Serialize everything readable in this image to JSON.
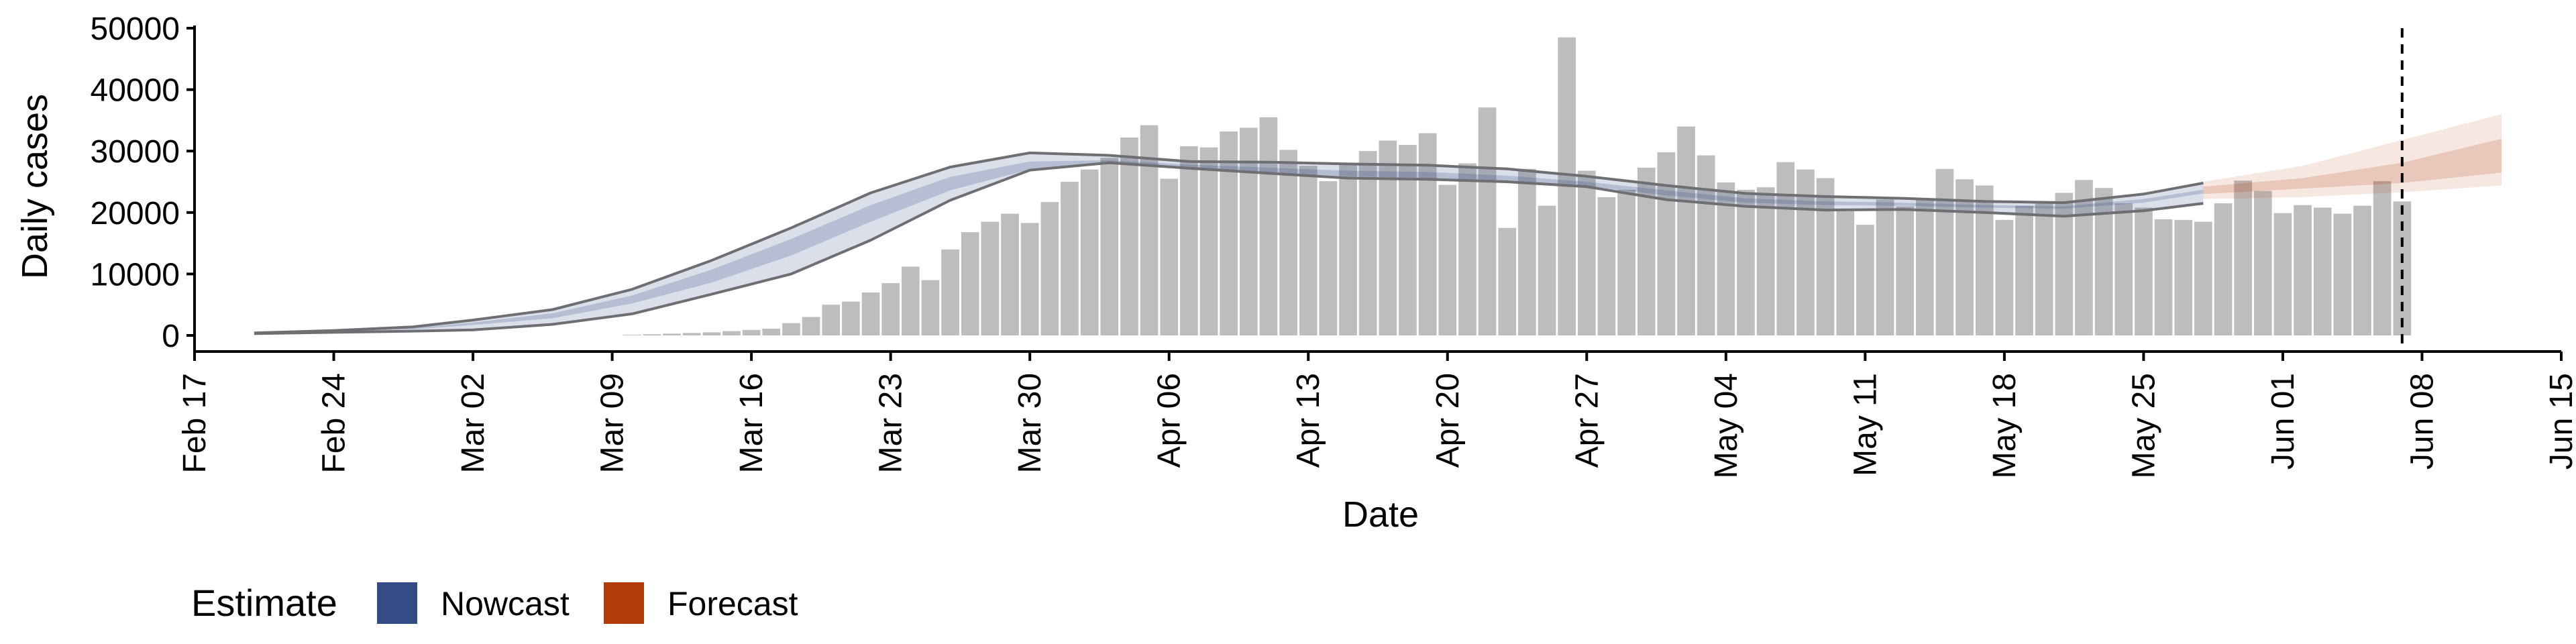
{
  "chart_data": {
    "type": "bar",
    "xlabel": "Date",
    "ylabel": "Daily cases",
    "ylim": [
      0,
      50000
    ],
    "yticks": [
      0,
      10000,
      20000,
      30000,
      40000,
      50000
    ],
    "xlim": [
      "2020-02-17",
      "2020-06-15"
    ],
    "xticks": [
      {
        "date": "2020-02-17",
        "label": "Feb 17"
      },
      {
        "date": "2020-02-24",
        "label": "Feb 24"
      },
      {
        "date": "2020-03-02",
        "label": "Mar 02"
      },
      {
        "date": "2020-03-09",
        "label": "Mar 09"
      },
      {
        "date": "2020-03-16",
        "label": "Mar 16"
      },
      {
        "date": "2020-03-23",
        "label": "Mar 23"
      },
      {
        "date": "2020-03-30",
        "label": "Mar 30"
      },
      {
        "date": "2020-04-06",
        "label": "Apr 06"
      },
      {
        "date": "2020-04-13",
        "label": "Apr 13"
      },
      {
        "date": "2020-04-20",
        "label": "Apr 20"
      },
      {
        "date": "2020-04-27",
        "label": "Apr 27"
      },
      {
        "date": "2020-05-04",
        "label": "May 04"
      },
      {
        "date": "2020-05-11",
        "label": "May 11"
      },
      {
        "date": "2020-05-18",
        "label": "May 18"
      },
      {
        "date": "2020-05-25",
        "label": "May 25"
      },
      {
        "date": "2020-06-01",
        "label": "Jun 01"
      },
      {
        "date": "2020-06-08",
        "label": "Jun 08"
      },
      {
        "date": "2020-06-15",
        "label": "Jun 15"
      }
    ],
    "grid": false,
    "legend": {
      "title": "Estimate",
      "position": "bottom-left",
      "items": [
        {
          "label": "Nowcast",
          "color": "#344b85"
        },
        {
          "label": "Forecast",
          "color": "#b33a0a"
        }
      ]
    },
    "reported_cases": {
      "start_date": "2020-03-10",
      "values": [
        100,
        200,
        300,
        400,
        500,
        700,
        900,
        1100,
        2000,
        3000,
        5000,
        5500,
        7000,
        8500,
        11200,
        9000,
        14000,
        16800,
        18500,
        19800,
        18300,
        21700,
        25000,
        27000,
        28900,
        32200,
        34200,
        25500,
        30800,
        30600,
        33200,
        33800,
        35500,
        30200,
        27600,
        25100,
        28000,
        30000,
        31700,
        31000,
        32900,
        24500,
        28000,
        37100,
        17500,
        27100,
        21100,
        48500,
        26800,
        22500,
        23700,
        27300,
        29800,
        34000,
        29300,
        24900,
        23700,
        24100,
        28200,
        27000,
        25600,
        20200,
        18000,
        22100,
        21000,
        22000,
        27100,
        25400,
        24400,
        18800,
        21100,
        21600,
        23200,
        25300,
        24000,
        21500,
        20800,
        18900,
        18800,
        18500,
        21500,
        25200,
        23500,
        19900,
        21200,
        20800,
        19800,
        21100,
        25100,
        21800
      ]
    },
    "nowcast": {
      "dates": [
        "2020-02-20",
        "2020-02-24",
        "2020-02-28",
        "2020-03-02",
        "2020-03-06",
        "2020-03-10",
        "2020-03-14",
        "2020-03-18",
        "2020-03-22",
        "2020-03-26",
        "2020-03-30",
        "2020-04-03",
        "2020-04-07",
        "2020-04-11",
        "2020-04-15",
        "2020-04-19",
        "2020-04-23",
        "2020-04-27",
        "2020-05-01",
        "2020-05-05",
        "2020-05-09",
        "2020-05-13",
        "2020-05-17",
        "2020-05-21",
        "2020-05-25",
        "2020-05-28"
      ],
      "upper_outer": [
        400,
        800,
        1400,
        2500,
        4200,
        7500,
        12200,
        17500,
        23200,
        27400,
        29700,
        29300,
        28300,
        28200,
        27900,
        27700,
        27100,
        25900,
        24400,
        23100,
        22600,
        22300,
        21800,
        21600,
        23000,
        24800
      ],
      "upper_inner": [
        360,
        700,
        1200,
        2100,
        3600,
        6500,
        10700,
        15700,
        21200,
        25800,
        28300,
        28500,
        27800,
        27300,
        26800,
        26600,
        26000,
        25000,
        23600,
        22300,
        21800,
        21600,
        21200,
        21000,
        22200,
        23700
      ],
      "lower_inner": [
        320,
        620,
        1000,
        1700,
        2800,
        5200,
        8600,
        13000,
        18500,
        23600,
        27000,
        27900,
        27100,
        26500,
        25900,
        25600,
        25100,
        24300,
        22800,
        21600,
        21200,
        21100,
        20800,
        20600,
        21600,
        23100
      ],
      "lower_outer": [
        300,
        500,
        700,
        900,
        1800,
        3500,
        6700,
        10000,
        15500,
        22000,
        26900,
        28100,
        27200,
        26400,
        25600,
        25400,
        25000,
        24200,
        22100,
        21000,
        20400,
        20500,
        20000,
        19400,
        20300,
        21500
      ]
    },
    "forecast": {
      "dates": [
        "2020-05-28",
        "2020-06-02",
        "2020-06-07",
        "2020-06-12"
      ],
      "upper_outer": [
        25000,
        27600,
        31800,
        36000
      ],
      "upper_inner": [
        24200,
        25600,
        28100,
        32000
      ],
      "lower_inner": [
        23000,
        23900,
        24800,
        26500
      ],
      "lower_outer": [
        22200,
        22500,
        23300,
        24400
      ]
    },
    "reference_line": {
      "date": "2020-06-07"
    }
  }
}
